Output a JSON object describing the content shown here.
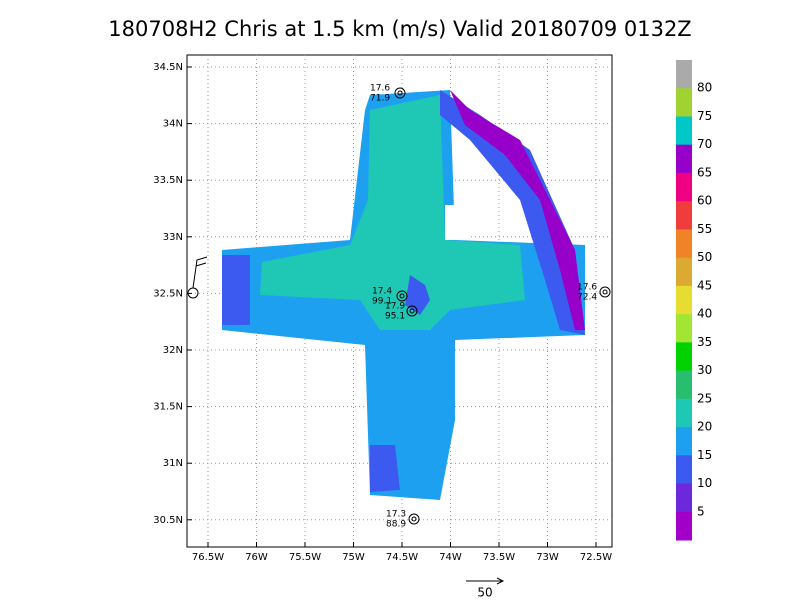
{
  "title": "180708H2 Chris at 1.5 km (m/s) Valid 20180709 0132Z",
  "lat_labels": [
    "34.5N",
    "34N",
    "33.5N",
    "33N",
    "32.5N",
    "32N",
    "31.5N",
    "31N",
    "30.5N"
  ],
  "lon_labels": [
    "76.5W",
    "76W",
    "75.5W",
    "75W",
    "74.5W",
    "74W",
    "73.5W",
    "73W",
    "72.5W"
  ],
  "colorbar": {
    "labels": [
      "80",
      "75",
      "70",
      "65",
      "60",
      "55",
      "50",
      "45",
      "40",
      "35",
      "30",
      "25",
      "20",
      "15",
      "10",
      "5"
    ],
    "colors": [
      "#aaaaaa",
      "#a0d232",
      "#00c8c8",
      "#9600c8",
      "#f00082",
      "#f03c3c",
      "#f08228",
      "#dcaa32",
      "#e6dc32",
      "#a0e632",
      "#00d200",
      "#28be6e",
      "#1ec8b4",
      "#1ea0f0",
      "#3c5af0",
      "#6e28dc",
      "#a000c8"
    ]
  },
  "stations": [
    {
      "speed": "17.6",
      "pressure": "71.9"
    },
    {
      "speed": "17.4",
      "pressure": "99.1"
    },
    {
      "speed": "17.9",
      "pressure": "95.1"
    },
    {
      "speed": "17.6",
      "pressure": "72.4"
    },
    {
      "speed": "17.3",
      "pressure": "88.9"
    }
  ],
  "vector_scale": "50"
}
